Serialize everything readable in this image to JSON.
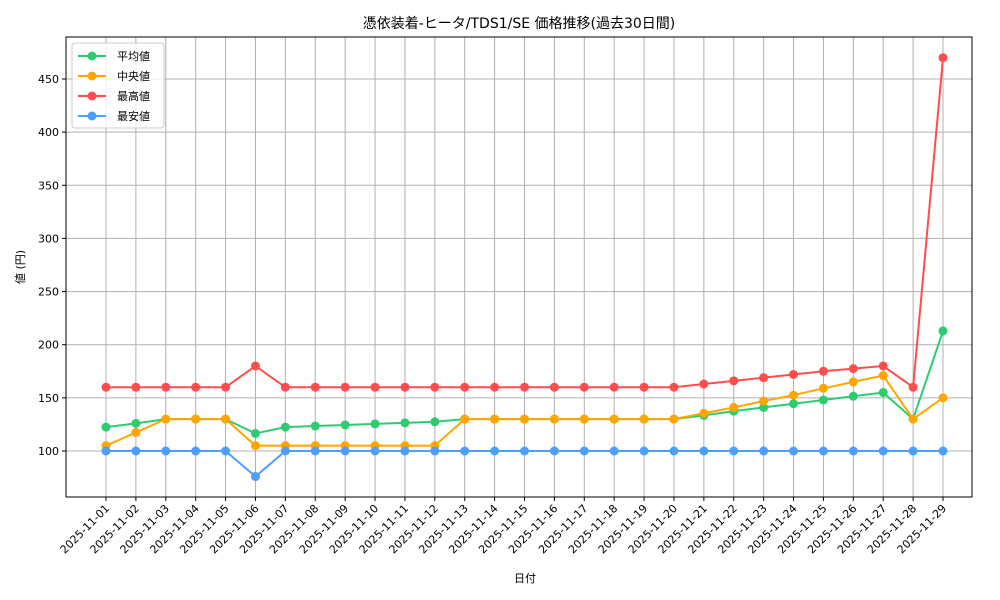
{
  "chart_data": {
    "type": "line",
    "title": "憑依装着-ヒータ/TDS1/SE 価格推移(過去30日間)",
    "xlabel": "日付",
    "ylabel": "値 (円)",
    "ylim": [
      53,
      488
    ],
    "yticks": [
      100,
      150,
      200,
      250,
      300,
      350,
      400,
      450
    ],
    "grid": true,
    "legend_position": "upper left",
    "x": [
      "2025-11-01",
      "2025-11-02",
      "2025-11-03",
      "2025-11-04",
      "2025-11-05",
      "2025-11-06",
      "2025-11-07",
      "2025-11-08",
      "2025-11-09",
      "2025-11-10",
      "2025-11-11",
      "2025-11-12",
      "2025-11-13",
      "2025-11-14",
      "2025-11-15",
      "2025-11-16",
      "2025-11-17",
      "2025-11-18",
      "2025-11-19",
      "2025-11-20",
      "2025-11-21",
      "2025-11-22",
      "2025-11-23",
      "2025-11-24",
      "2025-11-25",
      "2025-11-26",
      "2025-11-27",
      "2025-11-28",
      "2025-11-29"
    ],
    "series": [
      {
        "name": "平均値",
        "color": "#2ecc71",
        "values": [
          122.5,
          126,
          130,
          130,
          130,
          116.5,
          122.5,
          123.5,
          124.5,
          125.5,
          126.5,
          127.5,
          130,
          130,
          130,
          130,
          130,
          130,
          130,
          130,
          133.5,
          137.5,
          141,
          144.5,
          148,
          151.5,
          155,
          130,
          213
        ]
      },
      {
        "name": "中央値",
        "color": "#ffa500",
        "values": [
          105,
          117.5,
          130,
          130,
          130,
          105,
          105,
          105,
          105,
          105,
          105,
          105,
          130,
          130,
          130,
          130,
          130,
          130,
          130,
          130,
          135.5,
          141,
          147,
          152.5,
          159,
          165,
          171,
          130,
          150
        ]
      },
      {
        "name": "最高値",
        "color": "#ff4d4d",
        "values": [
          160,
          160,
          160,
          160,
          160,
          180,
          160,
          160,
          160,
          160,
          160,
          160,
          160,
          160,
          160,
          160,
          160,
          160,
          160,
          160,
          163,
          166,
          169,
          172,
          175,
          177.5,
          180,
          160,
          470
        ]
      },
      {
        "name": "最安値",
        "color": "#4d9fff",
        "values": [
          100,
          100,
          100,
          100,
          100,
          76,
          100,
          100,
          100,
          100,
          100,
          100,
          100,
          100,
          100,
          100,
          100,
          100,
          100,
          100,
          100,
          100,
          100,
          100,
          100,
          100,
          100,
          100,
          100
        ]
      }
    ]
  }
}
